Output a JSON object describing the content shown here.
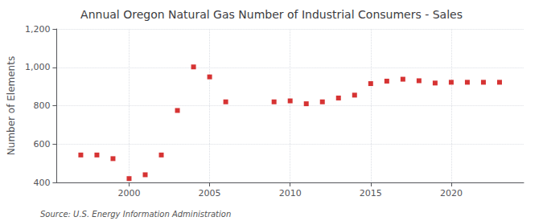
{
  "chart_data": {
    "type": "scatter",
    "title": "Annual Oregon Natural Gas Number of Industrial Consumers - Sales",
    "ylabel": "Number of Elements",
    "annotations": [
      "Source: U.S. Energy Information Administration"
    ],
    "x": [
      1997,
      1998,
      1999,
      2000,
      2001,
      2002,
      2003,
      2004,
      2005,
      2006,
      2009,
      2010,
      2011,
      2012,
      2013,
      2014,
      2015,
      2016,
      2017,
      2018,
      2019,
      2020,
      2021,
      2022,
      2023
    ],
    "values": [
      543,
      543,
      524,
      420,
      440,
      543,
      775,
      1002,
      950,
      820,
      820,
      825,
      810,
      820,
      840,
      855,
      915,
      928,
      938,
      930,
      918,
      922,
      922,
      922,
      922
    ],
    "color": "#cc0000",
    "marker": "square",
    "xlim": [
      1995.5,
      2024.5
    ],
    "xticks": [
      2000,
      2005,
      2010,
      2015,
      2020
    ],
    "ylim": [
      400,
      1200
    ],
    "yticks": [
      400,
      600,
      800,
      {
        "value": 1000,
        "label": "1,000"
      },
      {
        "value": 1200,
        "label": "1,200"
      }
    ],
    "grid": true
  }
}
